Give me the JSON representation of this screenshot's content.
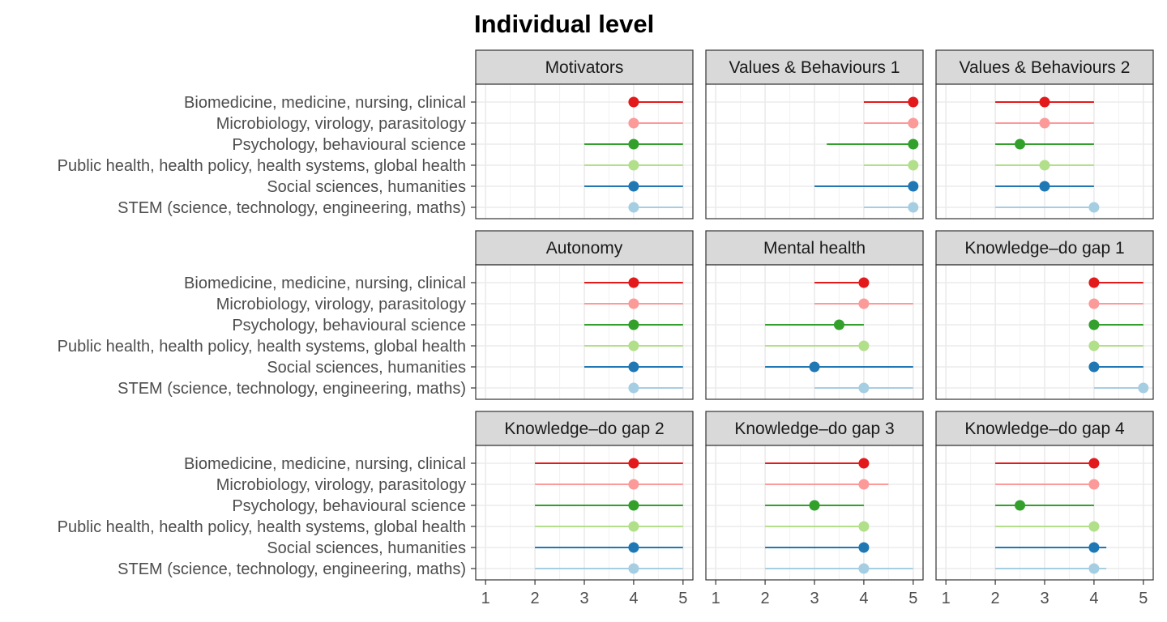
{
  "chart_data": {
    "type": "dot-range",
    "title": "Individual level",
    "xlim": [
      0.8,
      5.2
    ],
    "xticks": [
      1,
      2,
      3,
      4,
      5
    ],
    "grid": true,
    "categories": [
      "Biomedicine, medicine, nursing, clinical",
      "Microbiology, virology, parasitology",
      "Psychology, behavioural science",
      "Public health, health policy, health systems, global health",
      "Social sciences, humanities",
      "STEM (science, technology, engineering, maths)"
    ],
    "category_colors": [
      "#e31a1c",
      "#fb9a99",
      "#33a02c",
      "#b2df8a",
      "#1f78b4",
      "#a6cee3"
    ],
    "panels": [
      {
        "label": "Motivators",
        "median": [
          4,
          4,
          4,
          4,
          4,
          4
        ],
        "low": [
          4,
          4,
          3,
          3,
          3,
          4
        ],
        "high": [
          5,
          5,
          5,
          5,
          5,
          5
        ]
      },
      {
        "label": "Values & Behaviours 1",
        "median": [
          5,
          5,
          5,
          5,
          5,
          5
        ],
        "low": [
          4,
          4,
          3.25,
          4,
          3,
          4
        ],
        "high": [
          5,
          5,
          5,
          5,
          5,
          5
        ]
      },
      {
        "label": "Values & Behaviours 2",
        "median": [
          3,
          3,
          2.5,
          3,
          3,
          4
        ],
        "low": [
          2,
          2,
          2,
          2,
          2,
          2
        ],
        "high": [
          4,
          4,
          4,
          4,
          4,
          4
        ]
      },
      {
        "label": "Autonomy",
        "median": [
          4,
          4,
          4,
          4,
          4,
          4
        ],
        "low": [
          3,
          3,
          3,
          3,
          3,
          4
        ],
        "high": [
          5,
          5,
          5,
          5,
          5,
          5
        ]
      },
      {
        "label": "Mental health",
        "median": [
          4,
          4,
          3.5,
          4,
          3,
          4
        ],
        "low": [
          3,
          3,
          2,
          2,
          2,
          3
        ],
        "high": [
          4,
          5,
          4,
          4,
          5,
          5
        ]
      },
      {
        "label": "Knowledge–do gap 1",
        "median": [
          4,
          4,
          4,
          4,
          4,
          5
        ],
        "low": [
          4,
          4,
          4,
          4,
          4,
          4
        ],
        "high": [
          5,
          5,
          5,
          5,
          5,
          5
        ]
      },
      {
        "label": "Knowledge–do gap 2",
        "median": [
          4,
          4,
          4,
          4,
          4,
          4
        ],
        "low": [
          2,
          2,
          2,
          2,
          2,
          2
        ],
        "high": [
          5,
          5,
          5,
          5,
          5,
          5
        ]
      },
      {
        "label": "Knowledge–do gap 3",
        "median": [
          4,
          4,
          3,
          4,
          4,
          4
        ],
        "low": [
          2,
          2,
          2,
          2,
          2,
          2
        ],
        "high": [
          4,
          4.5,
          4,
          4,
          4,
          5
        ]
      },
      {
        "label": "Knowledge–do gap 4",
        "median": [
          4,
          4,
          2.5,
          4,
          4,
          4
        ],
        "low": [
          2,
          2,
          2,
          2,
          2,
          2
        ],
        "high": [
          4,
          4,
          4,
          4,
          4.25,
          4.25
        ]
      }
    ]
  }
}
